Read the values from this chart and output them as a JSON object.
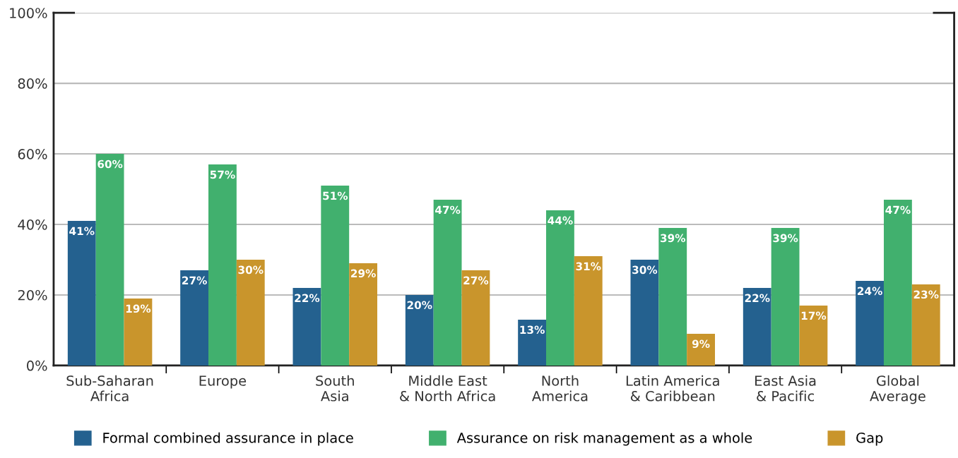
{
  "chart_data": {
    "type": "bar",
    "categories": [
      "Sub-Saharan\nAfrica",
      "Europe",
      "South\nAsia",
      "Middle East\n& North Africa",
      "North\nAmerica",
      "Latin America\n& Caribbean",
      "East Asia\n& Pacific",
      "Global\nAverage"
    ],
    "series": [
      {
        "name": "Formal combined assurance in place",
        "color": "#24618f",
        "values": [
          41,
          27,
          22,
          20,
          13,
          30,
          22,
          24
        ],
        "value_labels": [
          "41%",
          "27%",
          "22%",
          "20%",
          "13%",
          "30%",
          "22%",
          "24%"
        ]
      },
      {
        "name": "Assurance on risk management as a whole",
        "color": "#41b06e",
        "values": [
          60,
          57,
          51,
          47,
          44,
          39,
          39,
          47
        ],
        "value_labels": [
          "60%",
          "57%",
          "51%",
          "47%",
          "44%",
          "39%",
          "39%",
          "47%"
        ]
      },
      {
        "name": "Gap",
        "color": "#c9952c",
        "values": [
          19,
          30,
          29,
          27,
          31,
          9,
          17,
          23
        ],
        "value_labels": [
          "19%",
          "30%",
          "29%",
          "27%",
          "31%",
          "9%",
          "17%",
          "23%"
        ]
      }
    ],
    "ylim": [
      0,
      100
    ],
    "yticks": [
      {
        "value": 0,
        "label": "0%"
      },
      {
        "value": 20,
        "label": "20%"
      },
      {
        "value": 40,
        "label": "40%"
      },
      {
        "value": 60,
        "label": "60%"
      },
      {
        "value": 80,
        "label": "80%"
      },
      {
        "value": 100,
        "label": "100%"
      }
    ],
    "grid": "y",
    "legend": "bottom"
  }
}
